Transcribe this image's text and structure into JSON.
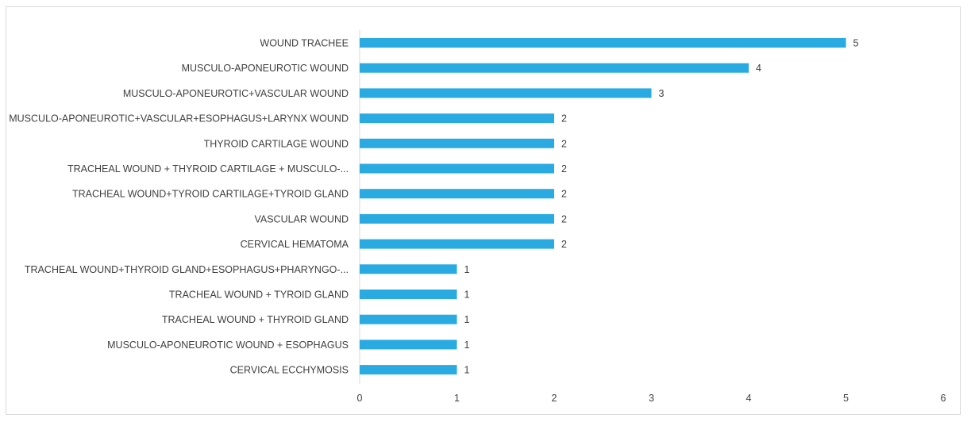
{
  "chart_data": {
    "type": "bar",
    "orientation": "horizontal",
    "title": "",
    "xlabel": "",
    "ylabel": "",
    "xlim": [
      0,
      6
    ],
    "xticks": [
      0,
      1,
      2,
      3,
      4,
      5,
      6
    ],
    "grid": false,
    "legend": "none",
    "bar_color": "#29ABE2",
    "categories": [
      "WOUND TRACHEE",
      "MUSCULO-APONEUROTIC WOUND",
      "MUSCULO-APONEUROTIC+VASCULAR WOUND",
      "MUSCULO-APONEUROTIC+VASCULAR+ESOPHAGUS+LARYNX WOUND",
      "THYROID CARTILAGE WOUND",
      "TRACHEAL WOUND + THYROID CARTILAGE + MUSCULO-...",
      "TRACHEAL WOUND+TYROID CARTILAGE+TYROID GLAND",
      "VASCULAR WOUND",
      "CERVICAL HEMATOMA",
      "TRACHEAL WOUND+THYROID GLAND+ESOPHAGUS+PHARYNGO-...",
      "TRACHEAL WOUND + TYROID GLAND",
      "TRACHEAL WOUND + THYROID GLAND",
      "MUSCULO-APONEUROTIC WOUND + ESOPHAGUS",
      "CERVICAL ECCHYMOSIS"
    ],
    "values": [
      5,
      4,
      3,
      2,
      2,
      2,
      2,
      2,
      2,
      1,
      1,
      1,
      1,
      1
    ]
  }
}
